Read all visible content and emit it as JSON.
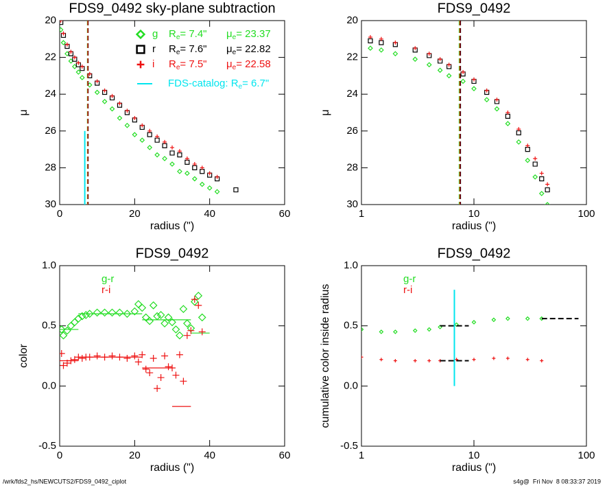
{
  "chart_data": [
    {
      "type": "scatter",
      "title": "FDS9_0492 sky-plane subtraction",
      "xlabel": "radius (\")",
      "ylabel": "μ",
      "xlim": [
        0,
        60
      ],
      "xticks": [
        0,
        20,
        40,
        60
      ],
      "ylim": [
        20,
        30
      ],
      "yticks": [
        20,
        22,
        24,
        26,
        28,
        30
      ],
      "yaxis_inverted": true,
      "legend": "upper right",
      "re_symbol": "R",
      "mu_symbol": "μ",
      "subscript": "e",
      "marker_size": 3,
      "catalog_re": 6.7,
      "catalog_range": [
        26,
        30
      ],
      "catalog_color": "#00e5ee",
      "catalog_label": "FDS-catalog: R",
      "catalog_text": "= 6.7\"",
      "x": [
        0.3,
        1,
        2,
        3,
        4,
        5,
        6,
        8,
        10,
        12,
        14,
        16,
        18,
        20,
        22,
        24,
        26,
        28,
        30,
        32,
        34,
        36,
        38,
        40,
        42,
        47
      ],
      "series": [
        {
          "name": "g",
          "color": "#22dd22",
          "marker": "diamond",
          "re": 7.4,
          "re_text": "= 7.4\"",
          "mu_text": "= 23.37",
          "values": [
            20.5,
            21.2,
            21.8,
            22.2,
            22.5,
            22.8,
            23.1,
            23.5,
            23.9,
            24.4,
            24.8,
            25.3,
            25.7,
            26.2,
            26.5,
            26.9,
            27.3,
            27.5,
            27.8,
            28.2,
            28.3,
            28.6,
            28.9,
            29.1,
            29.3,
            null
          ]
        },
        {
          "name": "r",
          "color": "#000000",
          "marker": "square",
          "re": 7.6,
          "re_text": "= 7.6\"",
          "mu_text": "= 22.82",
          "values": [
            20.1,
            20.8,
            21.4,
            21.8,
            22.1,
            22.4,
            22.6,
            23.0,
            23.4,
            23.9,
            24.2,
            24.6,
            25.0,
            25.4,
            25.8,
            26.2,
            26.5,
            26.8,
            27.2,
            27.3,
            27.7,
            28.0,
            28.2,
            28.4,
            28.6,
            29.2
          ]
        },
        {
          "name": "i",
          "color": "#ee1111",
          "marker": "plus",
          "re": 7.5,
          "re_text": "= 7.5\"",
          "mu_text": "= 22.58",
          "values": [
            20.0,
            20.7,
            21.3,
            21.7,
            22.0,
            22.3,
            22.5,
            22.9,
            23.3,
            23.8,
            24.1,
            24.5,
            24.9,
            25.3,
            25.7,
            26.0,
            26.3,
            26.6,
            26.9,
            27.1,
            27.5,
            27.8,
            28.0,
            28.3,
            28.5,
            null
          ]
        }
      ]
    },
    {
      "type": "scatter",
      "title": "FDS9_0492",
      "xlabel": "radius (\")",
      "ylabel": "μ",
      "xscale": "log",
      "xlim": [
        1,
        100
      ],
      "xticks": [
        1,
        10,
        100
      ],
      "ylim": [
        20,
        30
      ],
      "yticks": [
        20,
        22,
        24,
        26,
        28,
        30
      ],
      "yaxis_inverted": true,
      "marker_size": 3,
      "x": [
        1.2,
        1.5,
        2,
        3,
        4,
        5,
        6,
        8,
        10,
        13,
        16,
        20,
        25,
        30,
        35,
        40,
        45
      ],
      "series": [
        {
          "color": "#22dd22",
          "marker": "diamond",
          "re": 7.4,
          "values": [
            21.5,
            21.6,
            21.8,
            22.1,
            22.4,
            22.7,
            23.0,
            23.3,
            23.7,
            24.3,
            24.8,
            25.6,
            26.6,
            27.6,
            28.5,
            29.4,
            30.0
          ]
        },
        {
          "color": "#000000",
          "marker": "square",
          "re": 7.6,
          "values": [
            21.1,
            21.2,
            21.3,
            21.6,
            21.9,
            22.2,
            22.5,
            22.9,
            23.3,
            23.9,
            24.4,
            25.2,
            26.1,
            27.0,
            27.8,
            28.6,
            29.2
          ]
        },
        {
          "color": "#ee1111",
          "marker": "plus",
          "re": 7.5,
          "values": [
            20.9,
            21.0,
            21.2,
            21.5,
            21.8,
            22.1,
            22.4,
            22.8,
            23.2,
            23.8,
            24.3,
            25.0,
            25.9,
            26.8,
            27.5,
            28.3,
            28.9
          ]
        }
      ]
    },
    {
      "type": "scatter",
      "title": "FDS9_0492",
      "xlabel": "radius (\")",
      "ylabel": "color",
      "xlim": [
        0,
        60
      ],
      "xticks": [
        0,
        20,
        40,
        60
      ],
      "ylim": [
        -0.5,
        1.0
      ],
      "yticks": [
        -0.5,
        {
          "value": 0,
          "label": "0.0"
        },
        0.5,
        {
          "value": 1,
          "label": "1.0"
        }
      ],
      "legend": "upper left",
      "marker_size": 5,
      "x": [
        0.5,
        1,
        2,
        3,
        4,
        5,
        6,
        7,
        8,
        10,
        12,
        14,
        16,
        18,
        20,
        21,
        22,
        23,
        24,
        25,
        26,
        27,
        28,
        29,
        30,
        31,
        32,
        33,
        34,
        35,
        36,
        37,
        38
      ],
      "series": [
        {
          "name": "g-r",
          "color": "#22dd22",
          "marker": "diamond",
          "values": [
            0.47,
            0.42,
            0.46,
            0.5,
            0.53,
            0.56,
            0.58,
            0.59,
            0.6,
            0.61,
            0.61,
            0.61,
            0.61,
            0.6,
            0.62,
            0.68,
            0.65,
            0.57,
            0.54,
            0.67,
            0.58,
            0.59,
            0.52,
            0.57,
            0.53,
            0.47,
            0.42,
            0.64,
            0.52,
            0.48,
            0.7,
            0.75,
            0.57
          ],
          "means": [
            {
              "x": [
                0,
                5
              ],
              "value": 0.47
            },
            {
              "x": [
                5,
                22
              ],
              "value": 0.6
            },
            {
              "x": [
                22,
                35
              ],
              "value": 0.55
            },
            {
              "x": [
                35,
                40
              ],
              "value": 0.44
            }
          ]
        },
        {
          "name": "r-i",
          "color": "#ee1111",
          "marker": "plus",
          "values": [
            0.27,
            0.17,
            0.19,
            0.21,
            0.22,
            0.24,
            0.23,
            0.24,
            0.24,
            0.25,
            0.24,
            0.25,
            0.24,
            0.23,
            0.25,
            0.2,
            0.26,
            0.14,
            0.11,
            0.23,
            -0.02,
            0.07,
            0.25,
            0.16,
            0.15,
            0.09,
            0.26,
            0.04,
            0.42,
            0.46,
            0.72,
            0.67,
            0.45
          ],
          "means": [
            {
              "x": [
                0,
                5
              ],
              "value": 0.21
            },
            {
              "x": [
                5,
                22
              ],
              "value": 0.24
            },
            {
              "x": [
                22,
                30
              ],
              "value": 0.15
            },
            {
              "x": [
                30,
                35
              ],
              "value": -0.17
            }
          ]
        }
      ]
    },
    {
      "type": "scatter",
      "title": "FDS9_0492",
      "xlabel": "radius (\")",
      "ylabel": "cumulative color inside radius",
      "xscale": "log",
      "xlim": [
        1,
        100
      ],
      "xticks": [
        1,
        10,
        100
      ],
      "ylim": [
        -0.5,
        1.0
      ],
      "yticks": [
        -0.5,
        {
          "value": 0,
          "label": "0.0"
        },
        0.5,
        {
          "value": 1,
          "label": "1.0"
        }
      ],
      "legend": "upper left",
      "marker_size": 2.5,
      "means_color": "#000000",
      "catalog_re": 6.7,
      "catalog_range": [
        0,
        0.8
      ],
      "catalog_color": "#00e5ee",
      "x": [
        1,
        1.5,
        2,
        3,
        4,
        5,
        7,
        10,
        15,
        20,
        30,
        40
      ],
      "series": [
        {
          "name": "g-r",
          "color": "#22dd22",
          "marker": "diamond",
          "values": [
            0.47,
            0.45,
            0.45,
            0.46,
            0.47,
            0.49,
            0.51,
            0.53,
            0.55,
            0.56,
            0.56,
            0.56
          ],
          "means": [
            {
              "x": [
                5,
                9
              ],
              "value": 0.5
            },
            {
              "x": [
                40,
                85
              ],
              "value": 0.56
            }
          ]
        },
        {
          "name": "r-i",
          "color": "#ee1111",
          "marker": "plus",
          "values": [
            0.24,
            0.22,
            0.21,
            0.21,
            0.21,
            0.21,
            0.22,
            0.22,
            0.23,
            0.23,
            0.22,
            0.21
          ],
          "means": [
            {
              "x": [
                5,
                9
              ],
              "value": 0.21
            }
          ]
        }
      ]
    }
  ],
  "footer": {
    "left": "/wrk/fds2_hs/NEWCUTS2/FDS9_0492_ciplot",
    "right": "s4g@  Fri Nov  8 08:33:37 2019"
  }
}
